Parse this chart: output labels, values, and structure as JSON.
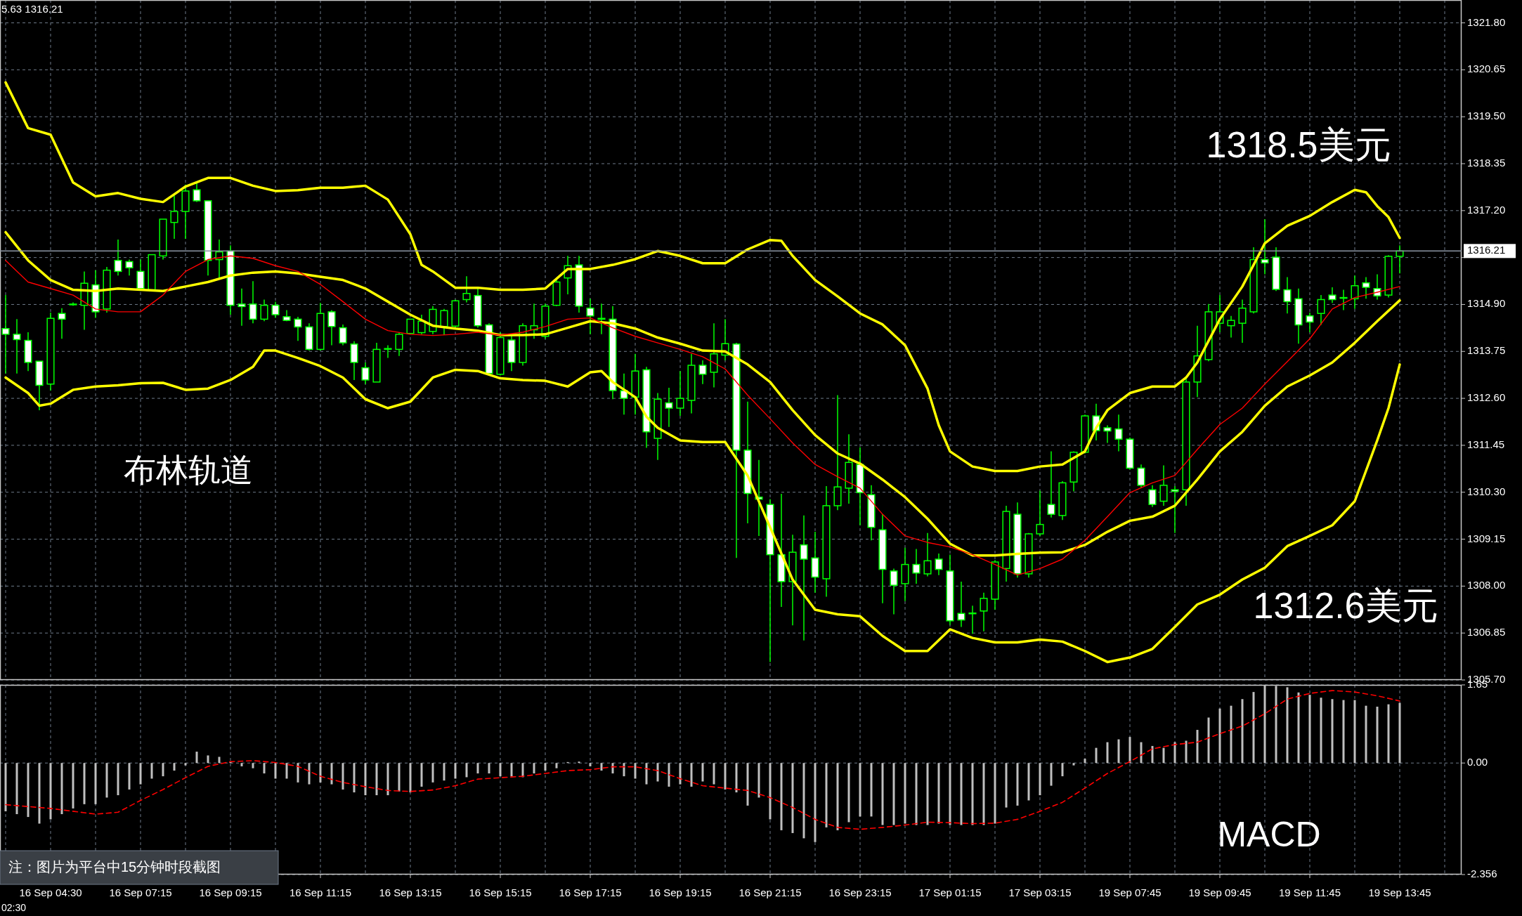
{
  "chart_data": [
    {
      "type": "candlestick",
      "ylim": [
        1305.7,
        1322.36
      ],
      "grid": true,
      "categories": [
        null,
        null,
        null,
        null,
        null,
        null,
        null,
        null,
        null,
        null,
        null,
        null,
        null,
        null,
        null,
        null,
        null,
        null,
        null,
        null,
        null,
        null,
        null,
        null,
        null,
        null,
        null,
        null,
        null,
        null,
        null,
        null,
        null,
        null,
        null,
        null,
        null,
        null,
        null,
        null,
        null,
        null,
        null,
        null,
        null,
        null,
        null,
        null,
        null,
        null,
        null,
        null,
        null,
        null,
        null,
        null,
        null,
        null,
        null,
        null,
        null,
        null,
        null,
        null,
        null,
        null,
        null,
        null,
        null,
        null,
        null,
        null,
        null,
        null,
        null,
        null,
        null,
        null,
        null,
        null,
        null,
        null,
        null,
        null,
        null,
        null,
        null,
        null,
        null,
        null,
        null,
        null,
        null,
        null,
        null,
        null,
        null,
        null,
        null,
        null,
        null,
        null,
        null,
        null,
        null,
        null,
        null,
        null,
        null,
        null,
        null,
        null,
        null,
        null,
        null,
        null,
        null,
        null,
        null,
        null,
        null,
        null,
        null,
        null,
        null,
        null,
        null,
        null,
        null,
        null
      ],
      "yticks": [
        {
          "value": 1305.7,
          "label": "1305.70"
        },
        {
          "value": 1306.85,
          "label": "1306.85"
        },
        {
          "value": 1308,
          "label": "1308.00"
        },
        {
          "value": 1309.15,
          "label": "1309.15"
        },
        {
          "value": 1310.3,
          "label": "1310.30"
        },
        {
          "value": 1311.45,
          "label": "1311.45"
        },
        {
          "value": 1312.6,
          "label": "1312.60"
        },
        {
          "value": 1313.75,
          "label": "1313.75"
        },
        {
          "value": 1314.9,
          "label": "1314.90"
        },
        {
          "value": 1316.05,
          "label": null
        },
        {
          "value": 1317.2,
          "label": "1317.20"
        },
        {
          "value": 1318.35,
          "label": "1318.35"
        },
        {
          "value": 1319.5,
          "label": "1319.50"
        },
        {
          "value": 1320.65,
          "label": "1320.65"
        },
        {
          "value": 1321.8,
          "label": "1321.80"
        }
      ],
      "ref_lines": [
        {
          "axis": "y",
          "value": 1316.21,
          "label": "1316.21",
          "color": "#8c96a3"
        }
      ],
      "annotations": [
        "5.63 1316.21",
        "布林轨道",
        "1318.5美元",
        "1312.6美元"
      ],
      "series": [
        {
          "color": "#00ff00",
          "ohlc": [
            [
              1314.31,
              1315.13,
              1313.21,
              1314.17
            ],
            [
              1314.17,
              1314.54,
              1313.21,
              1314.04
            ],
            [
              1314.02,
              1314.22,
              1313.27,
              1313.48
            ],
            [
              1313.51,
              1313.51,
              1312.31,
              1312.92
            ],
            [
              1312.95,
              1314.7,
              1312.79,
              1314.56
            ],
            [
              1314.68,
              1314.81,
              1314.06,
              1314.54
            ],
            [
              1314.91,
              1314.95,
              1314.87,
              1314.91
            ],
            [
              1314.88,
              1315.71,
              1314.28,
              1315.42
            ],
            [
              1315.38,
              1315.74,
              1314.57,
              1314.72
            ],
            [
              1314.79,
              1315.82,
              1314.7,
              1315.74
            ],
            [
              1315.98,
              1316.49,
              1315.61,
              1315.71
            ],
            [
              1315.95,
              1316.0,
              1315.61,
              1315.8
            ],
            [
              1315.71,
              1316.0,
              1315.23,
              1315.29
            ],
            [
              1315.26,
              1316.12,
              1315.26,
              1316.12
            ],
            [
              1316.09,
              1316.99,
              1316.0,
              1316.99
            ],
            [
              1316.91,
              1317.57,
              1316.51,
              1317.18
            ],
            [
              1317.18,
              1317.84,
              1316.51,
              1317.68
            ],
            [
              1317.71,
              1317.91,
              1317.41,
              1317.44
            ],
            [
              1317.44,
              1317.44,
              1315.61,
              1315.98
            ],
            [
              1316.0,
              1316.49,
              1315.55,
              1316.19
            ],
            [
              1316.21,
              1316.35,
              1314.65,
              1314.88
            ],
            [
              1314.91,
              1315.29,
              1314.38,
              1314.85
            ],
            [
              1314.91,
              1315.47,
              1314.44,
              1314.54
            ],
            [
              1314.54,
              1315.02,
              1314.49,
              1314.88
            ],
            [
              1314.88,
              1314.97,
              1314.57,
              1314.65
            ],
            [
              1314.6,
              1314.76,
              1314.49,
              1314.51
            ],
            [
              1314.54,
              1314.6,
              1314.01,
              1314.35
            ],
            [
              1314.35,
              1314.44,
              1313.77,
              1313.8
            ],
            [
              1313.8,
              1314.94,
              1313.77,
              1314.68
            ],
            [
              1314.72,
              1314.76,
              1313.9,
              1314.36
            ],
            [
              1314.33,
              1314.41,
              1313.9,
              1313.96
            ],
            [
              1313.93,
              1314.0,
              1313.05,
              1313.48
            ],
            [
              1313.35,
              1313.48,
              1312.95,
              1313.05
            ],
            [
              1313.0,
              1313.96,
              1313.0,
              1313.8
            ],
            [
              1313.82,
              1313.9,
              1313.59,
              1313.82
            ],
            [
              1313.8,
              1314.22,
              1313.64,
              1314.17
            ],
            [
              1314.19,
              1314.54,
              1314.17,
              1314.54
            ],
            [
              1314.21,
              1314.65,
              1314.17,
              1314.49
            ],
            [
              1314.24,
              1314.86,
              1314.17,
              1314.78
            ],
            [
              1314.36,
              1314.79,
              1314.15,
              1314.75
            ],
            [
              1314.37,
              1315.02,
              1314.33,
              1314.99
            ],
            [
              1315.02,
              1315.59,
              1314.95,
              1315.17
            ],
            [
              1315.12,
              1315.29,
              1314.33,
              1314.38
            ],
            [
              1314.4,
              1314.44,
              1313.16,
              1313.21
            ],
            [
              1313.19,
              1314.22,
              1313.16,
              1314.09
            ],
            [
              1314.03,
              1314.17,
              1313.27,
              1313.48
            ],
            [
              1313.48,
              1314.44,
              1313.4,
              1314.38
            ],
            [
              1314.28,
              1314.92,
              1314.06,
              1314.38
            ],
            [
              1314.12,
              1314.92,
              1314.06,
              1314.86
            ],
            [
              1314.88,
              1315.55,
              1314.86,
              1315.45
            ],
            [
              1315.55,
              1316.09,
              1315.15,
              1315.85
            ],
            [
              1315.87,
              1316.09,
              1314.7,
              1314.86
            ],
            [
              1314.81,
              1315.04,
              1314.17,
              1314.62
            ],
            [
              1314.56,
              1314.92,
              1314.17,
              1314.54
            ],
            [
              1314.54,
              1314.86,
              1312.58,
              1312.79
            ],
            [
              1312.79,
              1313.21,
              1312.2,
              1312.6
            ],
            [
              1312.63,
              1313.69,
              1312.2,
              1313.27
            ],
            [
              1313.3,
              1313.37,
              1311.39,
              1311.78
            ],
            [
              1311.62,
              1312.73,
              1311.09,
              1312.58
            ],
            [
              1312.49,
              1312.86,
              1311.9,
              1312.36
            ],
            [
              1312.36,
              1313.27,
              1312.17,
              1312.6
            ],
            [
              1312.55,
              1313.69,
              1312.23,
              1313.41
            ],
            [
              1313.41,
              1313.53,
              1312.95,
              1313.19
            ],
            [
              1313.24,
              1314.44,
              1312.87,
              1313.69
            ],
            [
              1313.66,
              1314.54,
              1313.53,
              1313.94
            ],
            [
              1313.93,
              1313.96,
              1308.69,
              1311.33
            ],
            [
              1311.33,
              1312.52,
              1309.54,
              1310.27
            ],
            [
              1310.18,
              1311.09,
              1309.23,
              1310.13
            ],
            [
              1310.0,
              1310.13,
              1306.14,
              1308.77
            ],
            [
              1308.77,
              1310.26,
              1307.49,
              1308.11
            ],
            [
              1308.11,
              1309.26,
              1307.04,
              1308.83
            ],
            [
              1309.01,
              1309.73,
              1306.67,
              1308.66
            ],
            [
              1308.69,
              1309.33,
              1307.84,
              1308.22
            ],
            [
              1308.18,
              1310.45,
              1307.74,
              1309.97
            ],
            [
              1309.97,
              1312.68,
              1309.86,
              1310.43
            ],
            [
              1310.4,
              1311.72,
              1310.02,
              1311.03
            ],
            [
              1310.98,
              1311.4,
              1309.49,
              1310.29
            ],
            [
              1310.24,
              1310.47,
              1309.12,
              1309.44
            ],
            [
              1309.38,
              1309.76,
              1307.58,
              1308.41
            ],
            [
              1308.37,
              1308.43,
              1307.31,
              1308.02
            ],
            [
              1308.06,
              1308.94,
              1307.63,
              1308.53
            ],
            [
              1308.53,
              1308.91,
              1308.06,
              1308.32
            ],
            [
              1308.3,
              1309.3,
              1308.24,
              1308.62
            ],
            [
              1308.66,
              1308.8,
              1308.27,
              1308.41
            ],
            [
              1308.37,
              1308.77,
              1307.05,
              1307.15
            ],
            [
              1307.33,
              1308.11,
              1307.0,
              1307.17
            ],
            [
              1307.34,
              1307.52,
              1306.83,
              1307.34
            ],
            [
              1307.39,
              1307.84,
              1306.89,
              1307.7
            ],
            [
              1307.68,
              1308.64,
              1307.42,
              1308.59
            ],
            [
              1308.43,
              1309.97,
              1308.11,
              1309.83
            ],
            [
              1309.76,
              1310.05,
              1308.21,
              1308.3
            ],
            [
              1308.3,
              1309.3,
              1308.21,
              1309.28
            ],
            [
              1309.28,
              1310.34,
              1309.23,
              1309.51
            ],
            [
              1310.0,
              1311.3,
              1309.68,
              1309.76
            ],
            [
              1309.73,
              1310.57,
              1309.62,
              1310.53
            ],
            [
              1310.55,
              1311.3,
              1310.32,
              1311.28
            ],
            [
              1311.28,
              1312.2,
              1311.25,
              1312.17
            ],
            [
              1312.17,
              1312.47,
              1311.57,
              1311.81
            ],
            [
              1311.88,
              1311.94,
              1311.51,
              1311.8
            ],
            [
              1311.85,
              1312.2,
              1311.3,
              1311.6
            ],
            [
              1311.6,
              1311.64,
              1310.85,
              1310.89
            ],
            [
              1310.89,
              1310.98,
              1310.4,
              1310.47
            ],
            [
              1310.36,
              1310.47,
              1309.94,
              1310.0
            ],
            [
              1310.08,
              1310.96,
              1309.97,
              1310.47
            ],
            [
              1310.36,
              1310.45,
              1309.3,
              1310.32
            ],
            [
              1310.36,
              1313.11,
              1309.97,
              1313.0
            ],
            [
              1313.0,
              1314.38,
              1312.63,
              1313.64
            ],
            [
              1313.55,
              1314.91,
              1313.51,
              1314.72
            ],
            [
              1314.44,
              1315.13,
              1314.22,
              1314.72
            ],
            [
              1314.38,
              1314.62,
              1314.09,
              1314.51
            ],
            [
              1314.44,
              1315.02,
              1313.96,
              1314.81
            ],
            [
              1314.72,
              1316.3,
              1314.68,
              1316.0
            ],
            [
              1316.0,
              1316.99,
              1315.64,
              1315.92
            ],
            [
              1316.06,
              1316.3,
              1315.23,
              1315.27
            ],
            [
              1315.26,
              1315.57,
              1314.68,
              1314.97
            ],
            [
              1315.04,
              1315.29,
              1313.94,
              1314.4
            ],
            [
              1314.62,
              1314.7,
              1314.22,
              1314.47
            ],
            [
              1314.68,
              1315.13,
              1314.4,
              1315.02
            ],
            [
              1315.13,
              1315.32,
              1314.94,
              1315.02
            ],
            [
              1315.07,
              1315.26,
              1314.76,
              1315.07
            ],
            [
              1315.04,
              1315.61,
              1314.79,
              1315.36
            ],
            [
              1315.43,
              1315.57,
              1315.04,
              1315.32
            ],
            [
              1315.29,
              1315.64,
              1315.02,
              1315.11
            ],
            [
              1315.13,
              1316.11,
              1315.07,
              1316.08
            ],
            [
              1316.08,
              1316.35,
              1315.66,
              1316.21
            ],
            null,
            null,
            null,
            null,
            null
          ]
        },
        {
          "type": "line",
          "color": "#ffff00",
          "values": [
            1320.34,
            null,
            1319.22,
            null,
            1319.06,
            null,
            1317.89,
            null,
            1317.55,
            null,
            1317.63,
            null,
            1317.49,
            null,
            1317.41,
            null,
            1317.79,
            null,
            1318.0,
            null,
            1318.0,
            null,
            1317.81,
            null,
            1317.68,
            null,
            1317.7,
            null,
            1317.76,
            null,
            1317.76,
            null,
            1317.81,
            null,
            1317.47,
            null,
            1316.62,
            1315.87,
            1315.71,
            null,
            1315.31,
            null,
            1315.31,
            null,
            1315.26,
            null,
            1315.26,
            null,
            1315.29,
            null,
            1315.77,
            null,
            1315.77,
            null,
            1315.87,
            null,
            1316.01,
            null,
            1316.21,
            null,
            1316.09,
            null,
            1315.91,
            null,
            1315.91,
            null,
            1316.25,
            null,
            1316.48,
            1316.46,
            1316.09,
            null,
            1315.5,
            null,
            1315.1,
            null,
            1314.68,
            null,
            1314.41,
            null,
            1313.9,
            null,
            1312.84,
            1311.94,
            1311.3,
            null,
            1310.93,
            null,
            1310.82,
            null,
            1310.82,
            null,
            1310.93,
            null,
            1310.98,
            null,
            1311.3,
            1311.88,
            1312.31,
            null,
            1312.73,
            null,
            1312.89,
            null,
            1312.89,
            1313.11,
            1313.48,
            null,
            1314.54,
            null,
            1315.34,
            1315.87,
            1316.4,
            null,
            1316.83,
            null,
            1317.07,
            null,
            1317.41,
            null,
            1317.71,
            1317.65,
            1317.31,
            1317.04,
            1316.53,
            null,
            null,
            null,
            null,
            null
          ]
        },
        {
          "type": "line",
          "color": "#ffff00",
          "values": [
            1316.67,
            null,
            1315.98,
            null,
            1315.5,
            null,
            1315.26,
            null,
            1315.23,
            null,
            1315.29,
            null,
            1315.26,
            null,
            1315.23,
            null,
            1315.34,
            null,
            1315.45,
            null,
            1315.61,
            null,
            1315.68,
            null,
            1315.71,
            null,
            1315.66,
            null,
            1315.58,
            null,
            1315.5,
            null,
            1315.29,
            null,
            1314.97,
            null,
            1314.65,
            null,
            1314.38,
            null,
            1314.31,
            null,
            1314.26,
            null,
            1314.15,
            null,
            1314.15,
            null,
            1314.17,
            null,
            1314.33,
            null,
            1314.49,
            null,
            1314.44,
            null,
            1314.31,
            null,
            1314.09,
            null,
            1313.94,
            null,
            1313.77,
            null,
            1313.75,
            null,
            1313.43,
            null,
            1313.0,
            null,
            1312.31,
            null,
            1311.7,
            null,
            1311.25,
            null,
            1311.0,
            null,
            1310.61,
            null,
            1310.18,
            null,
            1309.65,
            null,
            1309.04,
            null,
            1308.75,
            null,
            1308.75,
            null,
            1308.79,
            null,
            1308.82,
            null,
            1308.83,
            null,
            1309.01,
            null,
            1309.33,
            null,
            1309.6,
            null,
            1309.7,
            null,
            1309.97,
            null,
            1310.61,
            null,
            1311.3,
            null,
            1311.78,
            null,
            1312.42,
            null,
            1312.89,
            null,
            1313.16,
            null,
            1313.48,
            null,
            1313.96,
            null,
            1314.49,
            null,
            1315.0,
            null,
            null,
            null,
            null,
            null
          ]
        },
        {
          "type": "line",
          "color": "#ffff00",
          "values": [
            1313.11,
            null,
            1312.73,
            1312.42,
            1312.47,
            null,
            1312.81,
            null,
            1312.89,
            null,
            1312.92,
            null,
            1312.97,
            null,
            1312.98,
            null,
            1312.81,
            null,
            1312.84,
            null,
            1313.05,
            null,
            1313.37,
            1313.77,
            1313.77,
            null,
            1313.59,
            null,
            1313.39,
            null,
            1313.11,
            null,
            1312.58,
            null,
            1312.36,
            null,
            1312.52,
            null,
            1313.11,
            null,
            1313.3,
            null,
            1313.27,
            null,
            1313.09,
            null,
            1313.05,
            null,
            1313.03,
            null,
            1312.89,
            null,
            1313.24,
            1313.27,
            1313.0,
            null,
            1312.63,
            1312.15,
            1311.88,
            null,
            1311.57,
            null,
            1311.53,
            null,
            1311.53,
            null,
            1310.71,
            null,
            1309.44,
            null,
            1308.16,
            null,
            1307.42,
            null,
            1307.31,
            null,
            1307.26,
            null,
            1306.78,
            null,
            1306.41,
            null,
            1306.41,
            null,
            1306.94,
            null,
            1306.73,
            null,
            1306.62,
            null,
            1306.62,
            null,
            1306.69,
            null,
            1306.64,
            null,
            1306.41,
            null,
            1306.14,
            null,
            1306.25,
            null,
            1306.46,
            null,
            1307.0,
            null,
            1307.55,
            null,
            1307.79,
            null,
            1308.16,
            null,
            1308.45,
            null,
            1308.98,
            null,
            1309.23,
            null,
            1309.49,
            null,
            1310.08,
            null,
            1311.57,
            1312.36,
            1313.43,
            null,
            null,
            null,
            null,
            null
          ]
        },
        {
          "type": "line",
          "color": "#ff0000",
          "values": [
            1315.98,
            null,
            1315.45,
            null,
            1315.29,
            null,
            1315.13,
            null,
            1314.79,
            null,
            1314.72,
            null,
            1314.72,
            null,
            1315.13,
            null,
            1315.71,
            null,
            1316.0,
            null,
            1316.09,
            null,
            1316.03,
            null,
            1315.85,
            null,
            1315.71,
            null,
            1315.39,
            null,
            1314.97,
            null,
            1314.54,
            null,
            1314.26,
            null,
            1314.17,
            null,
            1314.14,
            null,
            1314.17,
            null,
            1314.22,
            null,
            1314.15,
            null,
            1314.22,
            null,
            1314.36,
            null,
            1314.54,
            null,
            1314.57,
            null,
            1314.33,
            null,
            1314.12,
            null,
            1313.96,
            null,
            1313.8,
            null,
            1313.62,
            null,
            1313.32,
            null,
            1312.68,
            null,
            1312.1,
            null,
            1311.51,
            null,
            1310.98,
            null,
            1310.68,
            null,
            1310.4,
            null,
            1309.76,
            null,
            1309.23,
            null,
            1309.07,
            null,
            1308.96,
            null,
            1308.77,
            null,
            1308.53,
            null,
            1308.27,
            null,
            1308.43,
            null,
            1308.66,
            null,
            1309.12,
            null,
            1309.7,
            null,
            1310.29,
            null,
            1310.53,
            null,
            1310.71,
            null,
            1311.35,
            null,
            1311.96,
            null,
            1312.36,
            null,
            1312.95,
            null,
            1313.5,
            null,
            1314.06,
            null,
            1314.79,
            null,
            1315.07,
            null,
            1315.2,
            null,
            1315.34,
            null,
            null,
            null,
            null,
            null
          ]
        }
      ]
    },
    {
      "type": "bar",
      "ylim": [
        -2.356,
        1.65
      ],
      "grid": true,
      "categories": [
        null,
        null,
        null,
        null,
        "16 Sep 04:30",
        null,
        null,
        null,
        null,
        null,
        null,
        null,
        "16 Sep 07:15",
        null,
        null,
        null,
        null,
        null,
        null,
        null,
        "16 Sep 09:15",
        null,
        null,
        null,
        null,
        null,
        null,
        null,
        "16 Sep 11:15",
        null,
        null,
        null,
        null,
        null,
        null,
        null,
        "16 Sep 13:15",
        null,
        null,
        null,
        null,
        null,
        null,
        null,
        "16 Sep 15:15",
        null,
        null,
        null,
        null,
        null,
        null,
        null,
        "16 Sep 17:15",
        null,
        null,
        null,
        null,
        null,
        null,
        null,
        "16 Sep 19:15",
        null,
        null,
        null,
        null,
        null,
        null,
        null,
        "16 Sep 21:15",
        null,
        null,
        null,
        null,
        null,
        null,
        null,
        "16 Sep 23:15",
        null,
        null,
        null,
        null,
        null,
        null,
        null,
        "17 Sep 01:15",
        null,
        null,
        null,
        null,
        null,
        null,
        null,
        "17 Sep 03:15",
        null,
        null,
        null,
        null,
        null,
        null,
        null,
        "19 Sep 07:45",
        null,
        null,
        null,
        null,
        null,
        null,
        null,
        "19 Sep 09:45",
        null,
        null,
        null,
        null,
        null,
        null,
        null,
        "19 Sep 11:45",
        null,
        null,
        null,
        null,
        null,
        null,
        null,
        "19 Sep 13:45",
        null,
        null,
        null,
        null,
        null
      ],
      "yticks": [
        {
          "value": -2.356,
          "label": "-2.356"
        },
        {
          "value": 0,
          "label": "0.00"
        },
        {
          "value": 1.65,
          "label": "1.65"
        }
      ],
      "annotations": [
        "MACD",
        "02:30",
        "注：图片为平台中15分钟时段截图"
      ],
      "series": [
        {
          "color": "#c0c0c0",
          "values": [
            -1.02,
            -1.08,
            -1.14,
            -1.28,
            -1.19,
            -1.08,
            -0.96,
            -0.87,
            -0.87,
            -0.73,
            -0.68,
            -0.56,
            -0.45,
            -0.33,
            -0.28,
            -0.16,
            -0.05,
            0.24,
            0.16,
            0.13,
            0.03,
            -0.07,
            -0.11,
            -0.22,
            -0.33,
            -0.33,
            -0.41,
            -0.45,
            -0.41,
            -0.45,
            -0.56,
            -0.62,
            -0.68,
            -0.68,
            -0.68,
            -0.6,
            -0.62,
            -0.5,
            -0.41,
            -0.37,
            -0.33,
            -0.3,
            -0.22,
            -0.22,
            -0.28,
            -0.28,
            -0.3,
            -0.22,
            -0.16,
            -0.11,
            0.02,
            0.03,
            -0.07,
            -0.16,
            -0.22,
            -0.28,
            -0.33,
            -0.45,
            -0.39,
            -0.5,
            -0.45,
            -0.5,
            -0.39,
            -0.45,
            -0.56,
            -0.62,
            -0.9,
            -0.73,
            -1.19,
            -1.42,
            -1.48,
            -1.59,
            -1.67,
            -1.36,
            -1.42,
            -1.25,
            -1.13,
            -1.13,
            -1.31,
            -1.31,
            -1.28,
            -1.31,
            -1.31,
            -1.28,
            -1.31,
            -1.31,
            -1.31,
            -1.31,
            -1.28,
            -0.94,
            -0.9,
            -0.79,
            -0.68,
            -0.48,
            -0.28,
            -0.05,
            0.09,
            0.32,
            0.44,
            0.5,
            0.55,
            0.44,
            0.36,
            0.32,
            0.44,
            0.47,
            0.7,
            0.96,
            1.15,
            1.21,
            1.35,
            1.5,
            1.65,
            1.63,
            1.6,
            1.49,
            1.44,
            1.38,
            1.35,
            1.33,
            1.33,
            1.21,
            1.19,
            1.24,
            1.27,
            null,
            null,
            null,
            null,
            null
          ]
        },
        {
          "type": "line",
          "color": "#ff0000",
          "line_style": "dashed",
          "values": [
            -0.88,
            null,
            null,
            null,
            -0.96,
            null,
            null,
            null,
            -1.08,
            null,
            -1.04,
            null,
            -0.79,
            null,
            -0.56,
            null,
            -0.31,
            null,
            -0.07,
            null,
            0.03,
            null,
            0.05,
            null,
            0.01,
            null,
            -0.07,
            null,
            -0.28,
            null,
            -0.41,
            null,
            -0.5,
            null,
            -0.58,
            null,
            -0.6,
            null,
            -0.57,
            null,
            -0.48,
            null,
            -0.34,
            null,
            -0.31,
            null,
            -0.28,
            null,
            -0.22,
            null,
            -0.16,
            null,
            -0.14,
            null,
            -0.08,
            null,
            -0.08,
            null,
            -0.16,
            null,
            -0.33,
            null,
            -0.48,
            null,
            -0.53,
            null,
            -0.58,
            null,
            -0.73,
            null,
            -0.94,
            null,
            -1.19,
            null,
            -1.36,
            null,
            -1.4,
            null,
            -1.36,
            null,
            -1.31,
            null,
            -1.25,
            null,
            -1.26,
            null,
            -1.28,
            null,
            -1.27,
            null,
            -1.19,
            null,
            -1.02,
            null,
            -0.83,
            null,
            -0.53,
            null,
            -0.22,
            null,
            0.03,
            null,
            0.3,
            null,
            0.39,
            null,
            0.44,
            null,
            0.62,
            null,
            0.78,
            null,
            1.04,
            null,
            1.35,
            null,
            1.47,
            null,
            1.53,
            null,
            1.5,
            null,
            1.42,
            null,
            1.31,
            null,
            null,
            null,
            null,
            null
          ]
        }
      ]
    }
  ]
}
